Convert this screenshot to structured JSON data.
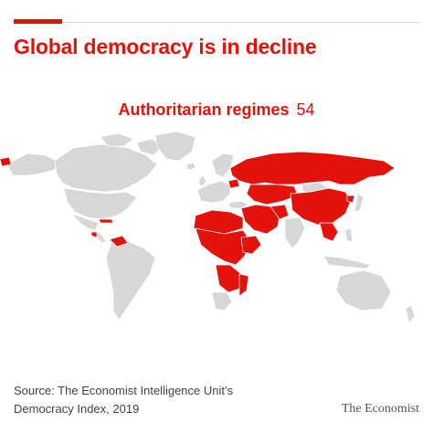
{
  "header": {
    "title": "Global democracy is in decline"
  },
  "category": {
    "label": "Authoritarian regimes",
    "count": "54"
  },
  "map": {
    "colors": {
      "highlight": "#e3120b",
      "land": "#d7d7d7",
      "border": "#ffffff",
      "background": "#ffffff"
    },
    "highlighted_regions": [
      "Russia",
      "China",
      "Central Asia",
      "Middle East",
      "North Africa",
      "Central Africa",
      "East Africa",
      "Southern Africa",
      "Southeast Asia",
      "Venezuela",
      "Cuba",
      "Nicaragua"
    ]
  },
  "footer": {
    "source_line1": "Source: The Economist Intelligence Unit’s",
    "source_line2": "Democracy Index, 2019",
    "brand": "The Economist"
  }
}
